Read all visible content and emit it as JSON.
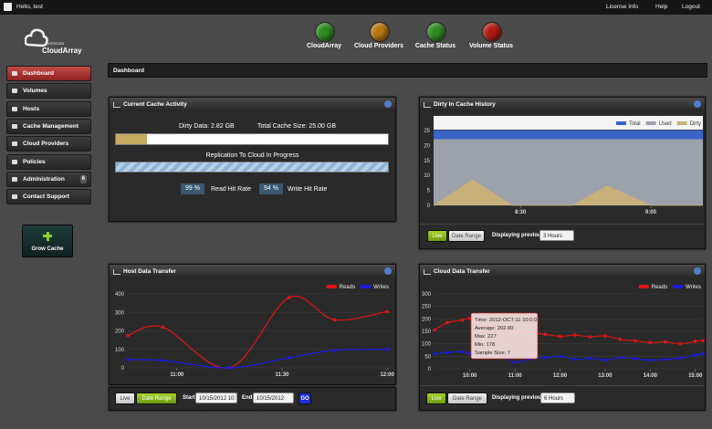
{
  "topbar": {
    "greeting": "Hello, test",
    "links": [
      "License Info",
      "Help",
      "Logout"
    ]
  },
  "logo": {
    "company": "TwinStrata",
    "product": "CloudArray"
  },
  "status": [
    {
      "label": "CloudArray",
      "color": "#2f8a22"
    },
    {
      "label": "Cloud Providers",
      "color": "#b5760e"
    },
    {
      "label": "Cache Status",
      "color": "#2f8a22"
    },
    {
      "label": "Volume Status",
      "color": "#b01c14"
    }
  ],
  "nav": [
    {
      "label": "Dashboard",
      "active": true
    },
    {
      "label": "Volumes"
    },
    {
      "label": "Hosts"
    },
    {
      "label": "Cache Management"
    },
    {
      "label": "Cloud Providers"
    },
    {
      "label": "Policies"
    },
    {
      "label": "Administration",
      "badge": "6"
    },
    {
      "label": "Contact Support"
    }
  ],
  "grow_cache": "Grow Cache",
  "page_title": "Dashboard",
  "cache_activity": {
    "title": "Current Cache Activity",
    "dirty_data": {
      "value": 2.82,
      "label": "Dirty Data: 2.82 GB"
    },
    "total_cache": {
      "value": 25,
      "label": "Total Cache Size: 25.00 GB"
    },
    "replication": "Replication To Cloud In Progress",
    "read_hit_rate": "99 %",
    "read_hit_caption": "Read Hit Rate",
    "write_hit_rate": "94 %",
    "write_hit_caption": "Write Hit Rate"
  },
  "dirty_history": {
    "title": "Dirty In Cache History",
    "type": "area",
    "x": [
      490,
      499,
      508,
      522,
      530,
      540,
      546,
      552
    ],
    "series": [
      {
        "name": "Total",
        "color": "#3a64c6",
        "values": [
          25,
          25,
          25,
          25,
          25,
          25,
          25,
          25
        ]
      },
      {
        "name": "Used",
        "color": "#9ca1ab",
        "values": [
          22,
          22,
          22,
          22,
          22,
          22,
          22,
          22
        ]
      },
      {
        "name": "Dirty",
        "color": "#c8b07a",
        "values": [
          0,
          8.5,
          0,
          0,
          6.5,
          0,
          0,
          0
        ]
      }
    ],
    "xlim": [
      490,
      552
    ],
    "xticks": [
      {
        "value": 510,
        "label": "8:30"
      },
      {
        "value": 540,
        "label": "9:00"
      }
    ],
    "ylim": [
      0,
      25
    ],
    "yticks": [
      0,
      5,
      10,
      15,
      20,
      25
    ],
    "controls": {
      "live": "Live",
      "date_range": "Date Range",
      "displaying": "Displaying previous:",
      "period": "3 Hours"
    }
  },
  "host_transfer": {
    "title": "Host Data Transfer",
    "type": "line",
    "x": [
      646,
      656,
      675,
      692,
      705,
      720
    ],
    "series": [
      {
        "name": "Reads",
        "color": "#e01414",
        "values": [
          175,
          220,
          0,
          380,
          260,
          305
        ]
      },
      {
        "name": "Writes",
        "color": "#1a1ae6",
        "values": [
          45,
          40,
          0,
          55,
          95,
          100
        ]
      }
    ],
    "xlim": [
      646,
      721
    ],
    "xticks": [
      {
        "value": 660,
        "label": "11:00"
      },
      {
        "value": 690,
        "label": "11:30"
      },
      {
        "value": 720,
        "label": "12:00"
      }
    ],
    "ylim": [
      0,
      400
    ],
    "yticks": [
      0,
      100,
      200,
      300,
      400
    ],
    "controls": {
      "live": "Live",
      "date_range": "Date Range",
      "start_label": "Start:",
      "start": "10/15/2012 10:(",
      "end_label": "End:",
      "end": "10/15/2012 12:0",
      "go": "GO"
    }
  },
  "cloud_transfer": {
    "title": "Cloud Data Transfer",
    "type": "line",
    "x": [
      553,
      570,
      590,
      600,
      618,
      640,
      660,
      680,
      700,
      720,
      740,
      760,
      780,
      800,
      820,
      840,
      860,
      880,
      900,
      910
    ],
    "series": [
      {
        "name": "Reads",
        "color": "#e01414",
        "values": [
          155,
          185,
          195,
          202,
          172,
          165,
          150,
          145,
          138,
          130,
          135,
          128,
          132,
          118,
          112,
          105,
          108,
          100,
          110,
          112
        ]
      },
      {
        "name": "Writes",
        "color": "#1a1ae6",
        "values": [
          60,
          65,
          68,
          62,
          55,
          58,
          25,
          40,
          45,
          50,
          38,
          42,
          35,
          45,
          40,
          35,
          38,
          42,
          55,
          60
        ]
      }
    ],
    "xlim": [
      553,
      910
    ],
    "xticks": [
      {
        "value": 600,
        "label": "10:00"
      },
      {
        "value": 660,
        "label": "11:00"
      },
      {
        "value": 720,
        "label": "12:00"
      },
      {
        "value": 780,
        "label": "13:00"
      },
      {
        "value": 840,
        "label": "14:00"
      },
      {
        "value": 900,
        "label": "15:00"
      }
    ],
    "ylim": [
      0,
      300
    ],
    "yticks": [
      0,
      50,
      100,
      150,
      200,
      250,
      300
    ],
    "tooltip": [
      "Time: 2012-OCT-11 10:0:0",
      "Average: 202.00",
      "Max: 227",
      "Min: 178",
      "Sample Size: 7"
    ],
    "controls": {
      "live": "Live",
      "date_range": "Date Range",
      "displaying": "Displaying previous:",
      "period": "6 Hours"
    }
  }
}
